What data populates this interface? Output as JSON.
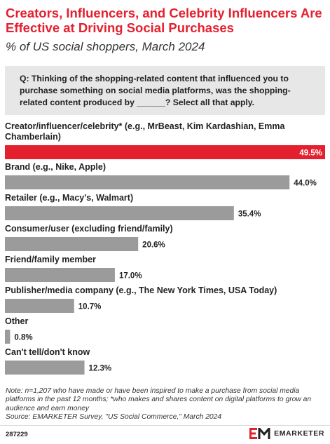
{
  "header": {
    "title": "Creators, Influencers, and Celebrity Influencers Are Effective at Driving Social Purchases",
    "subtitle": "% of US social shoppers, March 2024"
  },
  "question": "Q: Thinking of the shopping-related content that influenced you to purchase something on social media platforms, was the shopping-related content produced by ______? Select all that apply.",
  "chart_data": {
    "type": "bar",
    "orientation": "horizontal",
    "unit": "%",
    "categories": [
      "Creator/influencer/celebrity* (e.g., MrBeast, Kim Kardashian, Emma Chamberlain)",
      "Brand (e.g., Nike, Apple)",
      "Retailer (e.g., Macy's, Walmart)",
      "Consumer/user (excluding friend/family)",
      "Friend/family member",
      "Publisher/media company (e.g., The New York Times, USA Today)",
      "Other",
      "Can't tell/don't know"
    ],
    "values": [
      49.5,
      44.0,
      35.4,
      20.6,
      17.0,
      10.7,
      0.8,
      12.3
    ],
    "value_labels": [
      "49.5%",
      "44.0%",
      "35.4%",
      "20.6%",
      "17.0%",
      "10.7%",
      "0.8%",
      "12.3%"
    ],
    "highlight_index": 0,
    "colors": {
      "highlight": "#e4202f",
      "default": "#9b9b9b"
    },
    "xlim": [
      0,
      49.5
    ],
    "legend": "none",
    "grid": false
  },
  "footer": {
    "note": "Note: n=1,207 who have made or have been inspired to make a purchase from social media platforms in the past 12 months; *who makes and shares content on digital platforms to grow an audience and earn money",
    "source": "Source: EMARKETER Survey, \"US Social Commerce,\" March 2024",
    "chart_id": "287229",
    "brand_name": "EMARKETER",
    "brand_color": "#e4202f"
  }
}
